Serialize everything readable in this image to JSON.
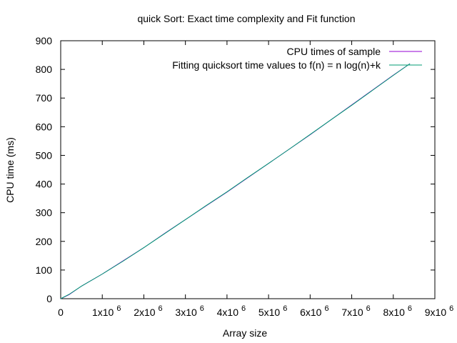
{
  "chart_data": {
    "type": "line",
    "title": "quick Sort: Exact time complexity and Fit function",
    "xlabel": "Array size",
    "ylabel": "CPU time (ms)",
    "xlim": [
      0,
      9000000
    ],
    "ylim": [
      0,
      900
    ],
    "x_ticks": [
      {
        "value": 0,
        "base": "0",
        "exp": ""
      },
      {
        "value": 1000000,
        "base": "1x10",
        "exp": "6"
      },
      {
        "value": 2000000,
        "base": "2x10",
        "exp": "6"
      },
      {
        "value": 3000000,
        "base": "3x10",
        "exp": "6"
      },
      {
        "value": 4000000,
        "base": "4x10",
        "exp": "6"
      },
      {
        "value": 5000000,
        "base": "5x10",
        "exp": "6"
      },
      {
        "value": 6000000,
        "base": "6x10",
        "exp": "6"
      },
      {
        "value": 7000000,
        "base": "7x10",
        "exp": "6"
      },
      {
        "value": 8000000,
        "base": "8x10",
        "exp": "6"
      },
      {
        "value": 9000000,
        "base": "9x10",
        "exp": "6"
      }
    ],
    "y_ticks": [
      0,
      100,
      200,
      300,
      400,
      500,
      600,
      700,
      800,
      900
    ],
    "grid": false,
    "legend_position": "top-right",
    "series": [
      {
        "name": "CPU times of sample",
        "color": "#9400d3",
        "x": [
          0,
          200000,
          500000,
          1000000,
          1500000,
          2000000,
          2500000,
          3000000,
          3500000,
          4000000,
          4500000,
          5000000,
          5500000,
          6000000,
          6500000,
          7000000,
          7500000,
          8000000,
          8400000
        ],
        "y": [
          0,
          14,
          44,
          86,
          132,
          178,
          228,
          276,
          324,
          372,
          422,
          472,
          522,
          572,
          624,
          676,
          728,
          780,
          820
        ]
      },
      {
        "name": "Fitting quicksort time values to f(n) = n log(n)+k",
        "color": "#009e73",
        "x": [
          0,
          200000,
          500000,
          1000000,
          1500000,
          2000000,
          2500000,
          3000000,
          3500000,
          4000000,
          4500000,
          5000000,
          5500000,
          6000000,
          6500000,
          7000000,
          7500000,
          8000000,
          8400000
        ],
        "y": [
          0,
          15,
          44,
          86,
          131,
          178,
          227,
          276,
          325,
          373,
          423,
          472,
          522,
          573,
          624,
          675,
          727,
          779,
          820
        ]
      }
    ]
  }
}
